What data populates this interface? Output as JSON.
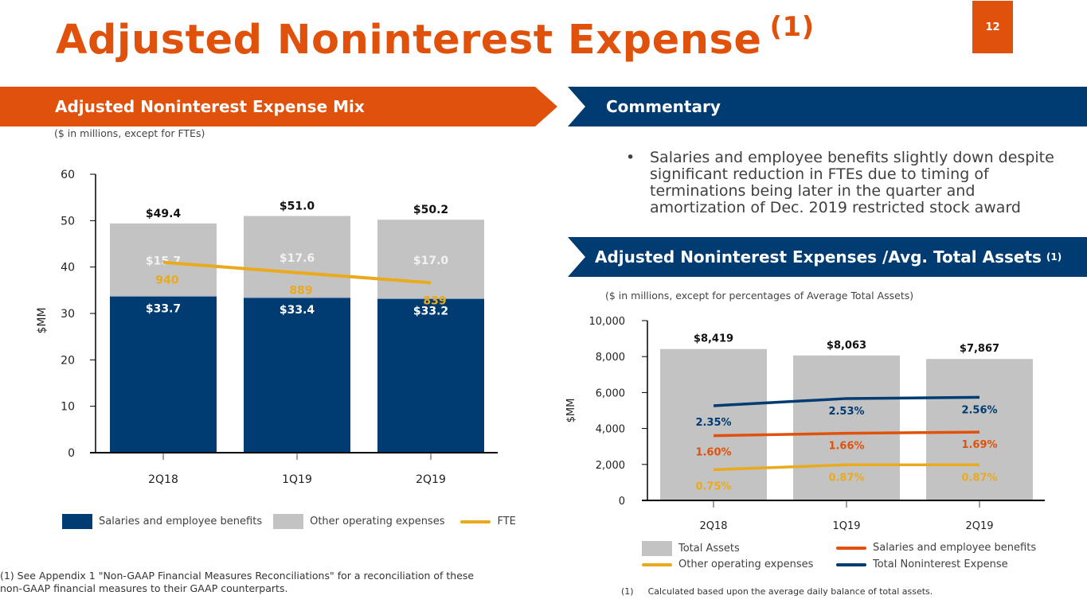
{
  "page": {
    "title": "Adjusted Noninterest Expense",
    "title_footnote": "(1)",
    "page_number": "12",
    "colors": {
      "orange": "#E0520C",
      "navy": "#003B71",
      "gray": "#C3C3C3",
      "gold": "#EAAA1D"
    }
  },
  "left_panel": {
    "banner": "Adjusted Noninterest Expense Mix",
    "note": "($ in millions, except for FTEs)",
    "footnote_line1": "(1) See Appendix 1 \"Non-GAAP Financial Measures Reconciliations\" for a reconciliation of these",
    "footnote_line2": "non-GAAP financial measures to their GAAP counterparts.",
    "legend": [
      {
        "label": "Salaries and employee benefits",
        "kind": "box",
        "color": "#003B71"
      },
      {
        "label": "Other operating expenses",
        "kind": "box",
        "color": "#C3C3C3"
      },
      {
        "label": "FTE",
        "kind": "line",
        "color": "#EAAA1D"
      }
    ]
  },
  "right_panel": {
    "commentary_banner": "Commentary",
    "bullet_glyph": "•",
    "commentary_bullets": [
      "Salaries and employee benefits slightly down despite significant reduction in FTEs due to timing of terminations being later in the quarter and amortization of Dec. 2019 restricted stock award"
    ],
    "ratio_banner": "Adjusted Noninterest Expenses /Avg. Total Assets",
    "ratio_banner_footnote": "(1)",
    "note": "($ in millions, except for percentages of Average Total Assets)",
    "legend": [
      {
        "label": "Total Assets",
        "kind": "box",
        "color": "#C3C3C3"
      },
      {
        "label": "Salaries and employee benefits",
        "kind": "line",
        "color": "#E0520C"
      },
      {
        "label": "Other operating expenses",
        "kind": "line",
        "color": "#EAAA1D"
      },
      {
        "label": "Total Noninterest Expense",
        "kind": "line",
        "color": "#003B71"
      }
    ],
    "footnote_num": "(1)",
    "footnote_text": "Calculated based upon the average daily balance of total assets."
  },
  "chart_data": [
    {
      "type": "bar",
      "stacked": true,
      "title": "Adjusted Noninterest Expense Mix",
      "categories": [
        "2Q18",
        "1Q19",
        "2Q19"
      ],
      "ylabel": "$MM",
      "ylim": [
        0,
        60
      ],
      "yticks": [
        "0",
        "10",
        "20",
        "30",
        "40",
        "50",
        "60"
      ],
      "series": [
        {
          "name": "Salaries and employee benefits",
          "values": [
            33.7,
            33.4,
            33.2
          ],
          "labels": [
            "$33.7",
            "$33.4",
            "$33.2"
          ],
          "color": "#003B71"
        },
        {
          "name": "Other operating expenses",
          "values": [
            15.7,
            17.6,
            17.0
          ],
          "labels": [
            "$15.7",
            "$17.6",
            "$17.0"
          ],
          "color": "#C3C3C3"
        }
      ],
      "totals": {
        "values": [
          49.4,
          51.0,
          50.2
        ],
        "labels": [
          "$49.4",
          "$51.0",
          "$50.2"
        ]
      },
      "line_series": {
        "name": "FTE",
        "type": "line",
        "values": [
          940,
          889,
          839
        ],
        "labels": [
          "940",
          "889",
          "839"
        ],
        "color": "#EAAA1D",
        "axis": "secondary (hidden)"
      }
    },
    {
      "type": "bar",
      "title": "Adjusted Noninterest Expenses /Avg. Total Assets",
      "categories": [
        "2Q18",
        "1Q19",
        "2Q19"
      ],
      "ylabel": "$MM",
      "ylim": [
        0,
        10000
      ],
      "yticks": [
        "0",
        "2,000",
        "4,000",
        "6,000",
        "8,000",
        "10,000"
      ],
      "bars": {
        "name": "Total Assets",
        "values": [
          8419,
          8063,
          7867
        ],
        "labels": [
          "$8,419",
          "$8,063",
          "$7,867"
        ],
        "color": "#C3C3C3"
      },
      "line_series": [
        {
          "name": "Total Noninterest Expense",
          "type": "line",
          "values_pct": [
            2.35,
            2.53,
            2.56
          ],
          "labels": [
            "2.35%",
            "2.53%",
            "2.56%"
          ],
          "color": "#003B71"
        },
        {
          "name": "Salaries and employee benefits",
          "type": "line",
          "values_pct": [
            1.6,
            1.66,
            1.69
          ],
          "labels": [
            "1.60%",
            "1.66%",
            "1.69%"
          ],
          "color": "#E0520C"
        },
        {
          "name": "Other operating expenses",
          "type": "line",
          "values_pct": [
            0.75,
            0.87,
            0.87
          ],
          "labels": [
            "0.75%",
            "0.87%",
            "0.87%"
          ],
          "color": "#EAAA1D"
        }
      ]
    }
  ]
}
